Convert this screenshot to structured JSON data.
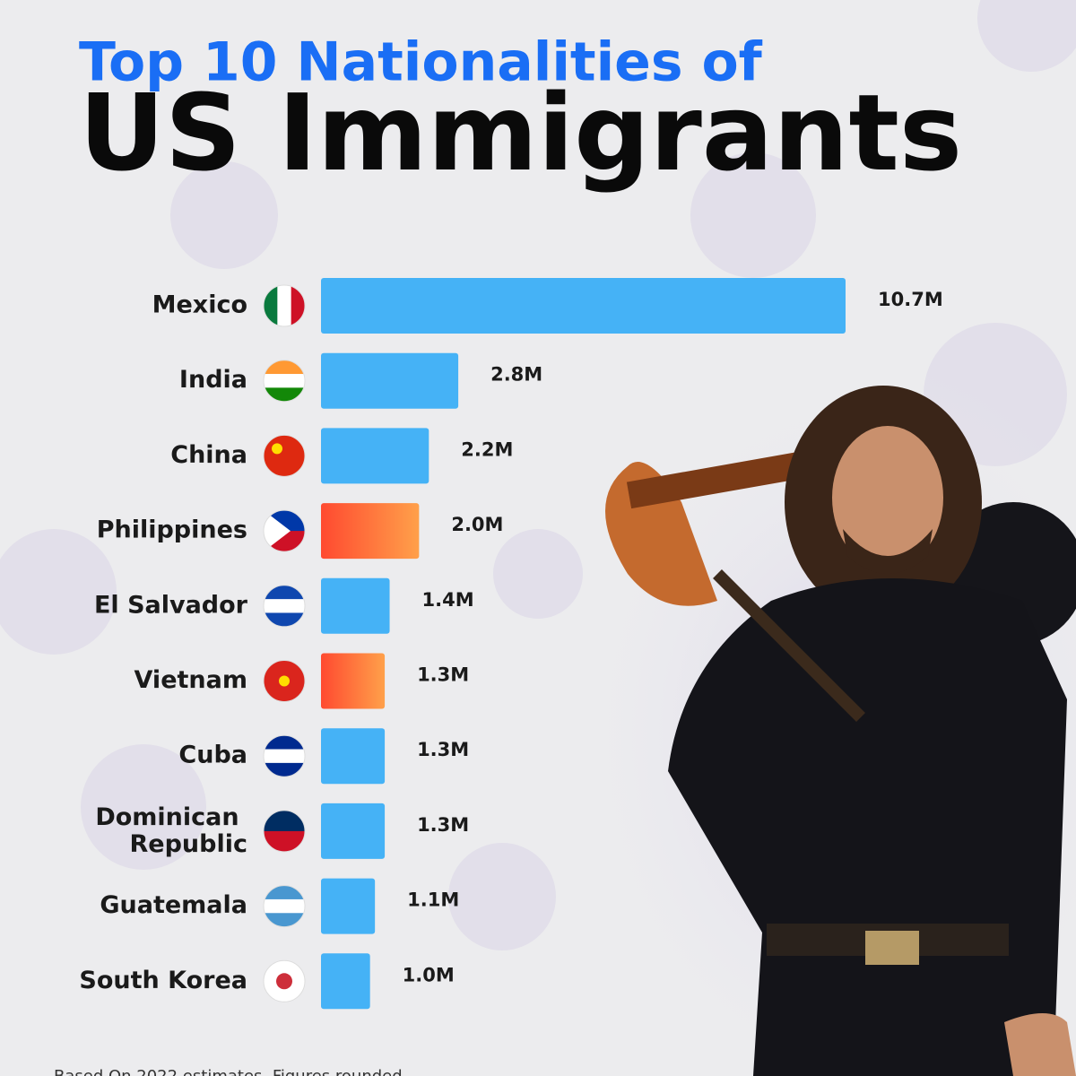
{
  "chart_data": {
    "type": "bar",
    "orientation": "horizontal",
    "title": "Top 10 Nationalities of",
    "subtitle": "US Immigrants",
    "categories": [
      "Mexico",
      "India",
      "China",
      "Philippines",
      "El Salvador",
      "Vietnam",
      "Cuba",
      "Dominican Republic",
      "Guatemala",
      "South Korea"
    ],
    "values": [
      10.7,
      2.8,
      2.2,
      2.0,
      1.4,
      1.3,
      1.3,
      1.3,
      1.1,
      1.0
    ],
    "value_labels": [
      "10.7M",
      "2.8M",
      "2.2M",
      "2.0M",
      "1.4M",
      "1.3M",
      "1.3M",
      "1.3M",
      "1.1M",
      "1.0M"
    ],
    "colors": [
      "#45b2f6",
      "#45b2f6",
      "#45b2f6",
      "#ff4a30",
      "#45b2f6",
      "#ff4a30",
      "#45b2f6",
      "#45b2f6",
      "#45b2f6",
      "#45b2f6"
    ],
    "note": "Based On 2022 estimates. Figures rounded"
  }
}
